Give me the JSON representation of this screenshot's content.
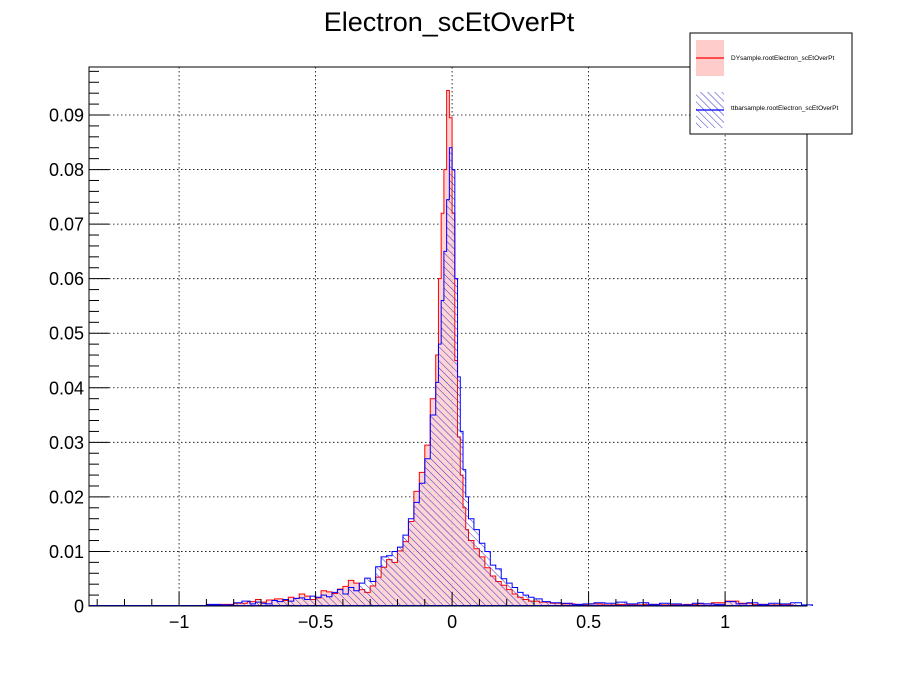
{
  "chart_data": {
    "type": "histogram",
    "title": "Electron_scEtOverPt",
    "xlabel": "",
    "ylabel": "",
    "xlim": [
      -1.33,
      1.3
    ],
    "ylim": [
      0,
      0.0988
    ],
    "grid": true,
    "x_ticks": [
      {
        "value": -1,
        "label": "−1"
      },
      {
        "value": -0.5,
        "label": "−0.5"
      },
      {
        "value": 0,
        "label": "0"
      },
      {
        "value": 0.5,
        "label": "0.5"
      },
      {
        "value": 1,
        "label": "1"
      }
    ],
    "y_ticks": [
      {
        "value": 0,
        "label": "0"
      },
      {
        "value": 0.01,
        "label": "0.01"
      },
      {
        "value": 0.02,
        "label": "0.02"
      },
      {
        "value": 0.03,
        "label": "0.03"
      },
      {
        "value": 0.04,
        "label": "0.04"
      },
      {
        "value": 0.05,
        "label": "0.05"
      },
      {
        "value": 0.06,
        "label": "0.06"
      },
      {
        "value": 0.07,
        "label": "0.07"
      },
      {
        "value": 0.08,
        "label": "0.08"
      },
      {
        "value": 0.09,
        "label": "0.09"
      }
    ],
    "legend_position": "top-right",
    "series": [
      {
        "name": "DYsample.rootElectron_scEtOverPt",
        "color": "#ff0000",
        "fill": "#ffcccc",
        "fill_style": "solid",
        "bins": [
          [
            -0.9,
            0.0002
          ],
          [
            -0.85,
            0.0003
          ],
          [
            -0.8,
            0.0005
          ],
          [
            -0.75,
            0.0008
          ],
          [
            -0.72,
            0.0012
          ],
          [
            -0.7,
            0.0007
          ],
          [
            -0.68,
            0.0011
          ],
          [
            -0.65,
            0.0013
          ],
          [
            -0.62,
            0.001
          ],
          [
            -0.6,
            0.0016
          ],
          [
            -0.58,
            0.0014
          ],
          [
            -0.56,
            0.0022
          ],
          [
            -0.54,
            0.0018
          ],
          [
            -0.52,
            0.0012
          ],
          [
            -0.5,
            0.0015
          ],
          [
            -0.48,
            0.0028
          ],
          [
            -0.46,
            0.0026
          ],
          [
            -0.44,
            0.0023
          ],
          [
            -0.42,
            0.0031
          ],
          [
            -0.4,
            0.0036
          ],
          [
            -0.38,
            0.0047
          ],
          [
            -0.36,
            0.0042
          ],
          [
            -0.34,
            0.003
          ],
          [
            -0.32,
            0.0025
          ],
          [
            -0.3,
            0.0037
          ],
          [
            -0.28,
            0.0053
          ],
          [
            -0.26,
            0.0071
          ],
          [
            -0.24,
            0.0085
          ],
          [
            -0.22,
            0.008
          ],
          [
            -0.2,
            0.0101
          ],
          [
            -0.18,
            0.0118
          ],
          [
            -0.16,
            0.0155
          ],
          [
            -0.14,
            0.021
          ],
          [
            -0.12,
            0.0245
          ],
          [
            -0.1,
            0.0295
          ],
          [
            -0.08,
            0.038
          ],
          [
            -0.06,
            0.046
          ],
          [
            -0.05,
            0.06
          ],
          [
            -0.04,
            0.072
          ],
          [
            -0.03,
            0.08
          ],
          [
            -0.02,
            0.0945
          ],
          [
            -0.01,
            0.0895
          ],
          [
            0.0,
            0.072
          ],
          [
            0.01,
            0.045
          ],
          [
            0.02,
            0.031
          ],
          [
            0.03,
            0.024
          ],
          [
            0.04,
            0.018
          ],
          [
            0.05,
            0.014
          ],
          [
            0.06,
            0.012
          ],
          [
            0.08,
            0.0105
          ],
          [
            0.1,
            0.009
          ],
          [
            0.12,
            0.007
          ],
          [
            0.14,
            0.0055
          ],
          [
            0.16,
            0.0045
          ],
          [
            0.18,
            0.0038
          ],
          [
            0.2,
            0.003
          ],
          [
            0.22,
            0.0022
          ],
          [
            0.24,
            0.0016
          ],
          [
            0.26,
            0.0012
          ],
          [
            0.28,
            0.0009
          ],
          [
            0.32,
            0.0007
          ],
          [
            0.36,
            0.0005
          ],
          [
            0.4,
            0.0004
          ],
          [
            0.45,
            0.0003
          ],
          [
            0.5,
            0.0004
          ],
          [
            0.55,
            0.0002
          ],
          [
            0.6,
            0.0003
          ],
          [
            0.65,
            0.0002
          ],
          [
            0.7,
            0.0003
          ],
          [
            0.75,
            0.0002
          ],
          [
            0.8,
            0.0002
          ],
          [
            0.85,
            0.0003
          ],
          [
            0.9,
            0.0004
          ],
          [
            0.95,
            0.0006
          ],
          [
            1.0,
            0.0009
          ],
          [
            1.05,
            0.0005
          ],
          [
            1.1,
            0.0003
          ],
          [
            1.15,
            0.0002
          ],
          [
            1.2,
            0.0002
          ],
          [
            1.25,
            0.0001
          ]
        ]
      },
      {
        "name": "ttbarsample.rootElectron_scEtOverPt",
        "color": "#0000ff",
        "fill": "#3333cc",
        "fill_style": "hatched",
        "bins": [
          [
            -0.9,
            0.0003
          ],
          [
            -0.85,
            0.0002
          ],
          [
            -0.8,
            0.0006
          ],
          [
            -0.77,
            0.0009
          ],
          [
            -0.74,
            0.0004
          ],
          [
            -0.72,
            0.0007
          ],
          [
            -0.7,
            0.0005
          ],
          [
            -0.68,
            0.0004
          ],
          [
            -0.66,
            0.001
          ],
          [
            -0.64,
            0.0008
          ],
          [
            -0.62,
            0.0012
          ],
          [
            -0.6,
            0.0009
          ],
          [
            -0.58,
            0.0014
          ],
          [
            -0.56,
            0.0015
          ],
          [
            -0.54,
            0.0012
          ],
          [
            -0.52,
            0.0018
          ],
          [
            -0.5,
            0.0016
          ],
          [
            -0.48,
            0.002
          ],
          [
            -0.46,
            0.0017
          ],
          [
            -0.44,
            0.0025
          ],
          [
            -0.42,
            0.003
          ],
          [
            -0.4,
            0.0022
          ],
          [
            -0.38,
            0.0034
          ],
          [
            -0.36,
            0.0028
          ],
          [
            -0.34,
            0.0042
          ],
          [
            -0.32,
            0.0051
          ],
          [
            -0.3,
            0.0045
          ],
          [
            -0.28,
            0.0072
          ],
          [
            -0.26,
            0.009
          ],
          [
            -0.24,
            0.0092
          ],
          [
            -0.22,
            0.01
          ],
          [
            -0.2,
            0.0108
          ],
          [
            -0.18,
            0.013
          ],
          [
            -0.16,
            0.016
          ],
          [
            -0.14,
            0.019
          ],
          [
            -0.12,
            0.0225
          ],
          [
            -0.1,
            0.027
          ],
          [
            -0.08,
            0.035
          ],
          [
            -0.06,
            0.041
          ],
          [
            -0.05,
            0.048
          ],
          [
            -0.04,
            0.056
          ],
          [
            -0.03,
            0.065
          ],
          [
            -0.02,
            0.0745
          ],
          [
            -0.01,
            0.084
          ],
          [
            0.0,
            0.08
          ],
          [
            0.01,
            0.06
          ],
          [
            0.02,
            0.042
          ],
          [
            0.03,
            0.032
          ],
          [
            0.04,
            0.025
          ],
          [
            0.05,
            0.02
          ],
          [
            0.06,
            0.016
          ],
          [
            0.08,
            0.014
          ],
          [
            0.1,
            0.0115
          ],
          [
            0.12,
            0.01
          ],
          [
            0.14,
            0.0075
          ],
          [
            0.16,
            0.0068
          ],
          [
            0.18,
            0.005
          ],
          [
            0.2,
            0.0042
          ],
          [
            0.22,
            0.0034
          ],
          [
            0.24,
            0.0025
          ],
          [
            0.26,
            0.002
          ],
          [
            0.28,
            0.0016
          ],
          [
            0.3,
            0.0013
          ],
          [
            0.33,
            0.0008
          ],
          [
            0.36,
            0.0006
          ],
          [
            0.4,
            0.0005
          ],
          [
            0.44,
            0.0003
          ],
          [
            0.48,
            0.0004
          ],
          [
            0.52,
            0.0006
          ],
          [
            0.56,
            0.0005
          ],
          [
            0.6,
            0.0007
          ],
          [
            0.64,
            0.0004
          ],
          [
            0.68,
            0.0006
          ],
          [
            0.72,
            0.0003
          ],
          [
            0.76,
            0.0005
          ],
          [
            0.8,
            0.0004
          ],
          [
            0.84,
            0.0002
          ],
          [
            0.88,
            0.0005
          ],
          [
            0.92,
            0.0004
          ],
          [
            0.96,
            0.0003
          ],
          [
            1.0,
            0.0008
          ],
          [
            1.04,
            0.0004
          ],
          [
            1.08,
            0.0006
          ],
          [
            1.12,
            0.0003
          ],
          [
            1.16,
            0.0005
          ],
          [
            1.2,
            0.0004
          ],
          [
            1.24,
            0.0006
          ],
          [
            1.28,
            0.0002
          ]
        ]
      }
    ]
  }
}
